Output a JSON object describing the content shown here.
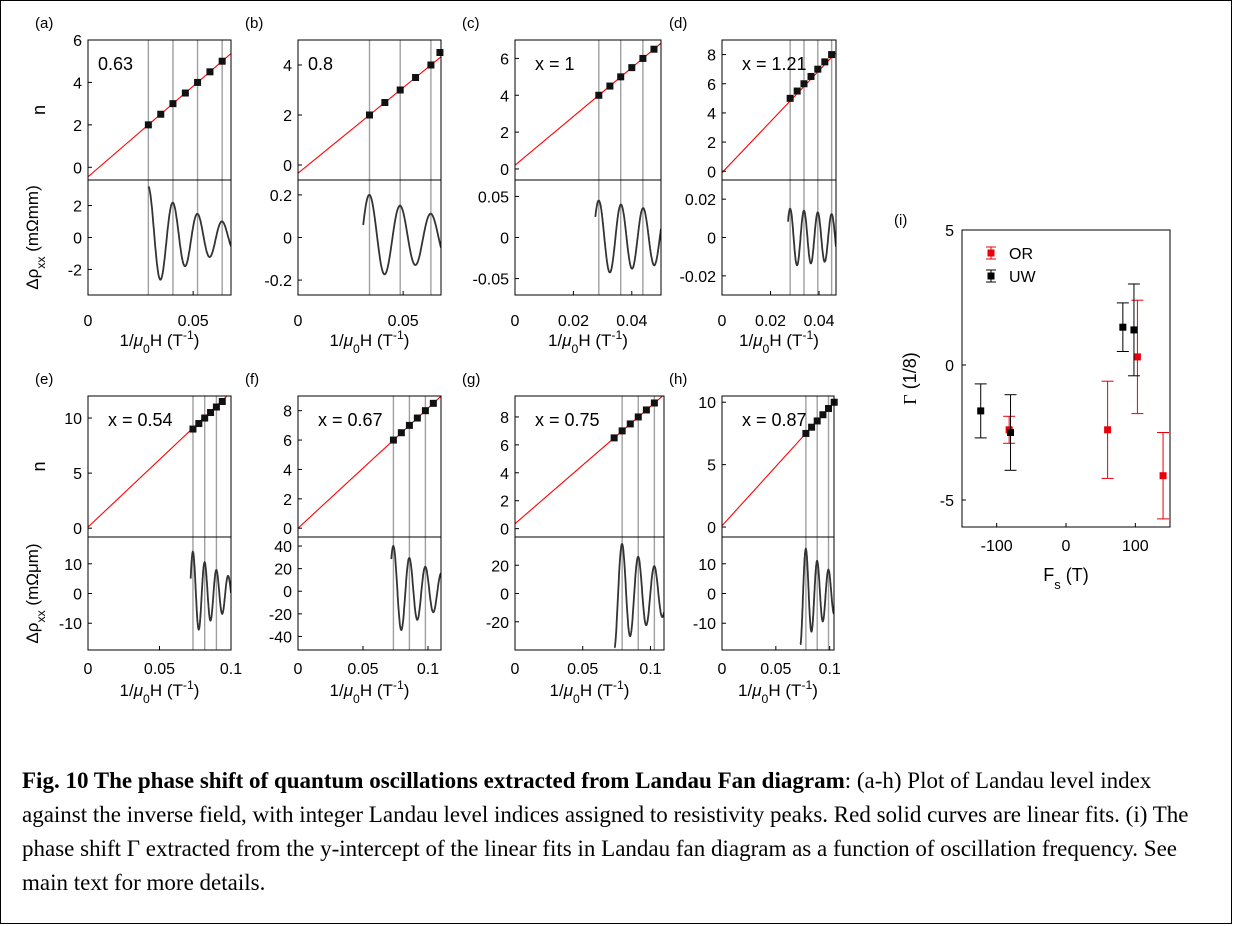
{
  "colors": {
    "fit_line": "#ff0000",
    "marker": "#111111",
    "vline": "#a0a0a0",
    "axis": "#000000",
    "or_series": "#e8000b",
    "uw_series": "#000000"
  },
  "caption": {
    "title": "Fig. 10 The phase shift of quantum oscillations extracted from Landau Fan diagram",
    "text": ": (a-h) Plot of Landau level index against the inverse field, with integer Landau level indices assigned to resistivity peaks. Red solid curves are linear fits. (i) The phase shift  Γ extracted from the y-intercept of the linear fits in Landau fan diagram as a function of oscillation frequency. See main text for more details."
  },
  "chart_data": [
    {
      "panel": "(a)",
      "type": "line",
      "annotation": "0.63",
      "xlabel": "1/μ0H (T-1)",
      "ylabel_top": "n",
      "ylabel_bottom": "Δρxx (mΩmm)",
      "xlim": [
        0,
        0.068
      ],
      "xticks": [
        "0",
        "0.05"
      ],
      "xtick_values": [
        0,
        0.05
      ],
      "top_ylim": [
        -0.6,
        6
      ],
      "top_yticks": [
        0,
        2,
        4,
        6
      ],
      "bottom_ylim": [
        -3.6,
        3.6
      ],
      "bottom_yticks": [
        -2,
        0,
        2
      ],
      "fit": {
        "slope": 85.5,
        "intercept": -0.45
      },
      "points": [
        {
          "x": 0.0287,
          "y": 2
        },
        {
          "x": 0.0346,
          "y": 2.5
        },
        {
          "x": 0.0404,
          "y": 3
        },
        {
          "x": 0.0463,
          "y": 3.5
        },
        {
          "x": 0.0521,
          "y": 4
        },
        {
          "x": 0.058,
          "y": 4.5
        },
        {
          "x": 0.0638,
          "y": 5
        }
      ],
      "vlines": [
        0.0287,
        0.0404,
        0.0521,
        0.0638
      ],
      "osc": {
        "x0": 0.0287,
        "x1": 0.068,
        "period": 0.0117,
        "amp": 3.2,
        "decay": 33,
        "phase_at": 0.0287,
        "clip_low": -3.5,
        "clip_high": 3.6
      }
    },
    {
      "panel": "(b)",
      "type": "line",
      "annotation": "0.8",
      "xlabel": "1/μ0H (T-1)",
      "ylabel_top": "",
      "ylabel_bottom": "",
      "xlim": [
        0,
        0.068
      ],
      "xticks": [
        "0",
        "0.05"
      ],
      "xtick_values": [
        0,
        0.05
      ],
      "top_ylim": [
        -0.6,
        5
      ],
      "top_yticks": [
        0,
        2,
        4
      ],
      "bottom_ylim": [
        -0.27,
        0.27
      ],
      "bottom_yticks": [
        -0.2,
        0,
        0.2
      ],
      "fit": {
        "slope": 68.5,
        "intercept": -0.33
      },
      "points": [
        {
          "x": 0.034,
          "y": 2
        },
        {
          "x": 0.0413,
          "y": 2.5
        },
        {
          "x": 0.0486,
          "y": 3
        },
        {
          "x": 0.0559,
          "y": 3.5
        },
        {
          "x": 0.0632,
          "y": 4
        },
        {
          "x": 0.0675,
          "y": 4.5
        }
      ],
      "vlines": [
        0.034,
        0.0486,
        0.0632
      ],
      "osc": {
        "x0": 0.031,
        "x1": 0.068,
        "period": 0.0146,
        "amp": 0.2,
        "decay": 20,
        "phase_at": 0.034,
        "clip_low": -0.26,
        "clip_high": 0.26
      }
    },
    {
      "panel": "(c)",
      "type": "line",
      "annotation": "x = 1",
      "xlabel": "1/μ0H (T-1)",
      "ylabel_top": "",
      "ylabel_bottom": "",
      "xlim": [
        0,
        0.05
      ],
      "xticks": [
        "0",
        "0.02",
        "0.04"
      ],
      "xtick_values": [
        0,
        0.02,
        0.04
      ],
      "top_ylim": [
        -0.6,
        7
      ],
      "top_yticks": [
        0,
        2,
        4,
        6
      ],
      "bottom_ylim": [
        -0.07,
        0.07
      ],
      "bottom_yticks": [
        -0.05,
        0,
        0.05
      ],
      "fit": {
        "slope": 132.5,
        "intercept": 0.2
      },
      "points": [
        {
          "x": 0.0287,
          "y": 4
        },
        {
          "x": 0.0325,
          "y": 4.5
        },
        {
          "x": 0.0362,
          "y": 5
        },
        {
          "x": 0.04,
          "y": 5.5
        },
        {
          "x": 0.0438,
          "y": 6
        },
        {
          "x": 0.0476,
          "y": 6.5
        }
      ],
      "vlines": [
        0.0287,
        0.0362,
        0.0438
      ],
      "osc": {
        "x0": 0.0275,
        "x1": 0.05,
        "period": 0.0076,
        "amp": 0.045,
        "decay": 15,
        "phase_at": 0.0287,
        "clip_low": -0.07,
        "clip_high": 0.07
      }
    },
    {
      "panel": "(d)",
      "type": "line",
      "annotation": "x = 1.21",
      "xlabel": "1/μ0H (T-1)",
      "ylabel_top": "",
      "ylabel_bottom": "",
      "xlim": [
        0,
        0.047
      ],
      "xticks": [
        "0",
        "0.02",
        "0.04"
      ],
      "xtick_values": [
        0,
        0.02,
        0.04
      ],
      "top_ylim": [
        -0.6,
        9
      ],
      "top_yticks": [
        0,
        2,
        4,
        6,
        8
      ],
      "bottom_ylim": [
        -0.03,
        0.03
      ],
      "bottom_yticks": [
        -0.02,
        0,
        0.02
      ],
      "fit": {
        "slope": 175,
        "intercept": -0.1
      },
      "points": [
        {
          "x": 0.0281,
          "y": 5
        },
        {
          "x": 0.031,
          "y": 5.5
        },
        {
          "x": 0.0338,
          "y": 6
        },
        {
          "x": 0.0367,
          "y": 6.5
        },
        {
          "x": 0.0395,
          "y": 7
        },
        {
          "x": 0.0424,
          "y": 7.5
        },
        {
          "x": 0.0452,
          "y": 8
        }
      ],
      "vlines": [
        0.0281,
        0.0338,
        0.0395,
        0.0452
      ],
      "osc": {
        "x0": 0.0272,
        "x1": 0.047,
        "period": 0.0057,
        "amp": 0.015,
        "decay": 12,
        "phase_at": 0.0281,
        "clip_low": -0.026,
        "clip_high": 0.03
      }
    },
    {
      "panel": "(e)",
      "type": "line",
      "annotation": "x = 0.54",
      "xlabel": "1/μ0H (T-1)",
      "ylabel_top": "n",
      "ylabel_bottom": "Δρxx (mΩμm)",
      "xlim": [
        0,
        0.1
      ],
      "xticks": [
        "0",
        "0.05",
        "0.1"
      ],
      "xtick_values": [
        0,
        0.05,
        0.1
      ],
      "top_ylim": [
        -0.8,
        12
      ],
      "top_yticks": [
        0,
        5,
        10
      ],
      "bottom_ylim": [
        -19,
        19
      ],
      "bottom_yticks": [
        -10,
        0,
        10
      ],
      "fit": {
        "slope": 122.5,
        "intercept": 0.1
      },
      "points": [
        {
          "x": 0.0734,
          "y": 9
        },
        {
          "x": 0.0775,
          "y": 9.5
        },
        {
          "x": 0.0816,
          "y": 10
        },
        {
          "x": 0.0857,
          "y": 10.5
        },
        {
          "x": 0.0898,
          "y": 11
        },
        {
          "x": 0.0939,
          "y": 11.5
        }
      ],
      "vlines": [
        0.0734,
        0.0816,
        0.0898
      ],
      "osc": {
        "x0": 0.0718,
        "x1": 0.1,
        "period": 0.0082,
        "amp": 14,
        "decay": 35,
        "phase_at": 0.0734,
        "clip_low": -17,
        "clip_high": 16
      }
    },
    {
      "panel": "(f)",
      "type": "line",
      "annotation": "x = 0.67",
      "xlabel": "1/μ0H (T-1)",
      "ylabel_top": "",
      "ylabel_bottom": "",
      "xlim": [
        0,
        0.11
      ],
      "xticks": [
        "0",
        "0.05",
        "0.1"
      ],
      "xtick_values": [
        0,
        0.05,
        0.1
      ],
      "top_ylim": [
        -0.6,
        9
      ],
      "top_yticks": [
        0,
        2,
        4,
        6,
        8
      ],
      "bottom_ylim": [
        -52,
        48
      ],
      "bottom_yticks": [
        -40,
        -20,
        0,
        20,
        40
      ],
      "fit": {
        "slope": 81.7,
        "intercept": 0
      },
      "points": [
        {
          "x": 0.0734,
          "y": 6
        },
        {
          "x": 0.0795,
          "y": 6.5
        },
        {
          "x": 0.0857,
          "y": 7
        },
        {
          "x": 0.0918,
          "y": 7.5
        },
        {
          "x": 0.098,
          "y": 8
        },
        {
          "x": 0.1041,
          "y": 8.5
        }
      ],
      "vlines": [
        0.0734,
        0.0857,
        0.098
      ],
      "osc": {
        "x0": 0.0718,
        "x1": 0.11,
        "period": 0.0123,
        "amp": 40,
        "decay": 25,
        "phase_at": 0.0734,
        "clip_low": -48,
        "clip_high": 44
      }
    },
    {
      "panel": "(g)",
      "type": "line",
      "annotation": "x = 0.75",
      "xlabel": "1/μ0H (T-1)",
      "ylabel_top": "",
      "ylabel_bottom": "",
      "xlim": [
        0,
        0.11
      ],
      "xticks": [
        "0",
        "0.05",
        "0.1"
      ],
      "xtick_values": [
        0,
        0.05,
        0.1
      ],
      "top_ylim": [
        -0.6,
        9.5
      ],
      "top_yticks": [
        0,
        2,
        4,
        6,
        8
      ],
      "bottom_ylim": [
        -40,
        40
      ],
      "bottom_yticks": [
        -20,
        0,
        20
      ],
      "fit": {
        "slope": 84,
        "intercept": 0.35
      },
      "points": [
        {
          "x": 0.0732,
          "y": 6.5
        },
        {
          "x": 0.0791,
          "y": 7
        },
        {
          "x": 0.0851,
          "y": 7.5
        },
        {
          "x": 0.091,
          "y": 8
        },
        {
          "x": 0.097,
          "y": 8.5
        },
        {
          "x": 0.1029,
          "y": 9
        }
      ],
      "vlines": [
        0.0791,
        0.091,
        0.1029
      ],
      "osc": {
        "x0": 0.0732,
        "x1": 0.11,
        "period": 0.0119,
        "amp": 35,
        "decay": 25,
        "phase_at": 0.0791,
        "clip_low": -38,
        "clip_high": 36
      }
    },
    {
      "panel": "(h)",
      "type": "line",
      "annotation": "x = 0.87",
      "xlabel": "1/μ0H (T-1)",
      "ylabel_top": "",
      "ylabel_bottom": "",
      "xlim": [
        0,
        0.104
      ],
      "xticks": [
        "0",
        "0.05",
        "0.1"
      ],
      "xtick_values": [
        0,
        0.05,
        0.1
      ],
      "top_ylim": [
        -0.8,
        10.5
      ],
      "top_yticks": [
        0,
        5,
        10
      ],
      "bottom_ylim": [
        -19,
        19
      ],
      "bottom_yticks": [
        -10,
        0,
        10
      ],
      "fit": {
        "slope": 95,
        "intercept": 0.1
      },
      "points": [
        {
          "x": 0.0779,
          "y": 7.5
        },
        {
          "x": 0.0832,
          "y": 8
        },
        {
          "x": 0.0884,
          "y": 8.5
        },
        {
          "x": 0.0937,
          "y": 9
        },
        {
          "x": 0.0989,
          "y": 9.5
        },
        {
          "x": 0.1042,
          "y": 10
        }
      ],
      "vlines": [
        0.0779,
        0.0884,
        0.0989
      ],
      "osc": {
        "x0": 0.0725,
        "x1": 0.104,
        "period": 0.0105,
        "amp": 15,
        "decay": 30,
        "phase_at": 0.0779,
        "clip_low": -17,
        "clip_high": 16
      }
    },
    {
      "panel": "(i)",
      "type": "scatter",
      "xlabel": "Fs (T)",
      "ylabel": "Γ (1/8)",
      "xlim": [
        -150,
        150
      ],
      "ylim": [
        -6,
        5
      ],
      "xticks": [
        -100,
        0,
        100
      ],
      "yticks": [
        -5,
        0,
        5
      ],
      "legend": [
        "OR",
        "UW"
      ],
      "legend_position": "top-left",
      "series": [
        {
          "name": "OR",
          "points": [
            {
              "x": -82,
              "y": -2.4,
              "err": 0.5
            },
            {
              "x": 60,
              "y": -2.4,
              "err": 1.8
            },
            {
              "x": 103,
              "y": 0.3,
              "err": 2.1
            },
            {
              "x": 140,
              "y": -4.1,
              "err": 1.6
            }
          ]
        },
        {
          "name": "UW",
          "points": [
            {
              "x": -123,
              "y": -1.7,
              "err": 1.0
            },
            {
              "x": -80,
              "y": -2.5,
              "err": 1.4
            },
            {
              "x": 82,
              "y": 1.4,
              "err": 0.9
            },
            {
              "x": 98,
              "y": 1.3,
              "err": 1.7
            }
          ]
        }
      ]
    }
  ]
}
